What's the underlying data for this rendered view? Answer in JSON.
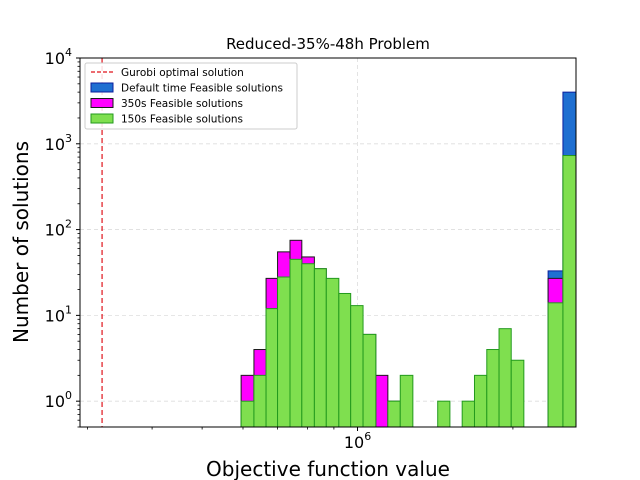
{
  "chart_data": {
    "type": "histogram",
    "title": "Reduced-35%-48h Problem",
    "xlabel": "Objective function value",
    "ylabel": "Number of solutions",
    "x_scale": "log",
    "y_scale": "log",
    "xlim": [
      290000,
      2650000
    ],
    "ylim": [
      0.5,
      10000
    ],
    "grid": true,
    "legend_position": "top-left",
    "x_tick_labels": [
      {
        "value": 1000000,
        "base": "10",
        "exp": "6"
      }
    ],
    "y_tick_labels": [
      {
        "value": 1,
        "base": "10",
        "exp": "0"
      },
      {
        "value": 10,
        "base": "10",
        "exp": "1"
      },
      {
        "value": 100,
        "base": "10",
        "exp": "2"
      },
      {
        "value": 1000,
        "base": "10",
        "exp": "3"
      },
      {
        "value": 10000,
        "base": "10",
        "exp": "4"
      }
    ],
    "reference_line": {
      "name": "Gurobi optimal solution",
      "x": 320000,
      "color": "#e0131b"
    },
    "series": [
      {
        "name": "Default time Feasible solutions",
        "fill": "#1f6fd1",
        "edge": "#0b1f9e",
        "bins": [
          [
            2340000,
            2500000,
            33
          ],
          [
            2500000,
            2650000,
            4000
          ]
        ]
      },
      {
        "name": "350s Feasible solutions",
        "fill": "#ff00ff",
        "edge": "#1a1a1a",
        "bins": [
          [
            595000,
            630000,
            2
          ],
          [
            630000,
            665000,
            4
          ],
          [
            665000,
            700000,
            27
          ],
          [
            700000,
            740000,
            55
          ],
          [
            740000,
            780000,
            75
          ],
          [
            780000,
            825000,
            48
          ],
          [
            825000,
            870000,
            35
          ],
          [
            870000,
            920000,
            13
          ],
          [
            920000,
            970000,
            2
          ],
          [
            970000,
            1025000,
            3
          ],
          [
            1025000,
            1085000,
            6
          ],
          [
            1085000,
            1145000,
            2
          ],
          [
            1145000,
            1210000,
            1
          ],
          [
            2340000,
            2500000,
            27
          ],
          [
            2500000,
            2650000,
            730
          ]
        ]
      },
      {
        "name": "150s Feasible solutions",
        "fill": "#7fdf4f",
        "edge": "#239a1e",
        "bins": [
          [
            595000,
            630000,
            1
          ],
          [
            630000,
            665000,
            2
          ],
          [
            665000,
            700000,
            12
          ],
          [
            700000,
            740000,
            28
          ],
          [
            740000,
            780000,
            45
          ],
          [
            780000,
            825000,
            40
          ],
          [
            825000,
            870000,
            35
          ],
          [
            870000,
            920000,
            27
          ],
          [
            920000,
            970000,
            18
          ],
          [
            970000,
            1025000,
            13
          ],
          [
            1025000,
            1085000,
            6
          ],
          [
            1145000,
            1210000,
            1
          ],
          [
            1210000,
            1280000,
            2
          ],
          [
            1430000,
            1510000,
            1
          ],
          [
            1595000,
            1685000,
            1
          ],
          [
            1685000,
            1780000,
            2
          ],
          [
            1780000,
            1880000,
            4
          ],
          [
            1880000,
            1985000,
            7
          ],
          [
            1985000,
            2100000,
            3
          ],
          [
            2340000,
            2500000,
            14
          ],
          [
            2500000,
            2650000,
            730
          ]
        ]
      }
    ]
  }
}
